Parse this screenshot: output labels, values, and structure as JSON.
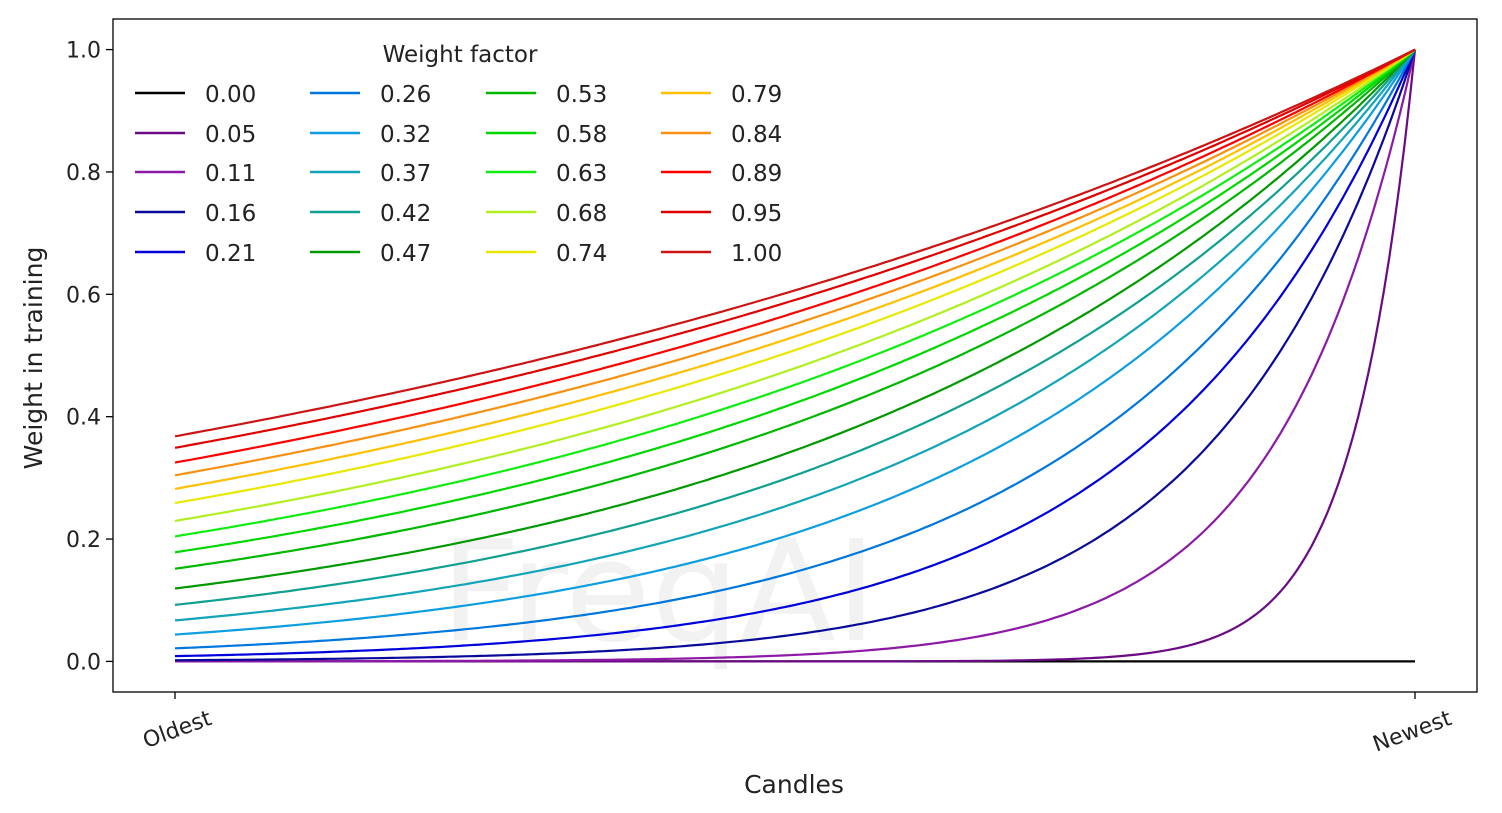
{
  "watermark": "FreqAI",
  "chart_data": {
    "type": "line",
    "title": "",
    "xlabel": "Candles",
    "ylabel": "Weight in training",
    "x": [
      0,
      1,
      2,
      3,
      4,
      5,
      6,
      7,
      8,
      9,
      10
    ],
    "xticks": [
      {
        "value": 0,
        "label": "Oldest"
      },
      {
        "value": 10,
        "label": "Newest"
      }
    ],
    "yticks": [
      "0.0",
      "0.2",
      "0.4",
      "0.6",
      "0.8",
      "1.0"
    ],
    "ylim": [
      -0.05,
      1.05
    ],
    "xlim": [
      -0.5,
      10.5
    ],
    "grid": false,
    "legend": {
      "title": "Weight factor",
      "placement": "top-left",
      "columns": 4
    },
    "series": [
      {
        "name": "0.00",
        "color": "#000000",
        "values": [
          0,
          0,
          0,
          0,
          0,
          0,
          0,
          0,
          0,
          0,
          0
        ]
      },
      {
        "name": "0.05",
        "color": "#6a0a84",
        "values": [
          0,
          0,
          0,
          0,
          0,
          0,
          0.0003,
          0.0025,
          0.0183,
          0.1353,
          1
        ]
      },
      {
        "name": "0.11",
        "color": "#8c1aa6",
        "values": [
          0.0001,
          0.0003,
          0.0007,
          0.0017,
          0.0043,
          0.0106,
          0.0264,
          0.0654,
          0.1623,
          0.4029,
          1
        ]
      },
      {
        "name": "0.16",
        "color": "#0a0a9a",
        "values": [
          0.0019,
          0.0036,
          0.0067,
          0.0126,
          0.0235,
          0.044,
          0.0821,
          0.1534,
          0.2865,
          0.5353,
          1
        ]
      },
      {
        "name": "0.21",
        "color": "#0000dd",
        "values": [
          0.0086,
          0.0138,
          0.0221,
          0.0357,
          0.0574,
          0.0924,
          0.1488,
          0.2396,
          0.3858,
          0.6211,
          1
        ]
      },
      {
        "name": "0.26",
        "color": "#0077dd",
        "values": [
          0.0214,
          0.0314,
          0.0461,
          0.0677,
          0.0995,
          0.1462,
          0.2147,
          0.3154,
          0.4634,
          0.6807,
          1
        ]
      },
      {
        "name": "0.32",
        "color": "#0c9ee0",
        "values": [
          0.0439,
          0.06,
          0.0821,
          0.1122,
          0.1533,
          0.2096,
          0.2865,
          0.3916,
          0.5352,
          0.7316,
          1
        ]
      },
      {
        "name": "0.37",
        "color": "#12a5b8",
        "values": [
          0.067,
          0.0879,
          0.1151,
          0.1508,
          0.1976,
          0.259,
          0.3393,
          0.4446,
          0.5825,
          0.7632,
          1
        ]
      },
      {
        "name": "0.42",
        "color": "#10a090",
        "values": [
          0.0924,
          0.1173,
          0.1488,
          0.1888,
          0.2396,
          0.304,
          0.3858,
          0.4895,
          0.6211,
          0.7881,
          1
        ]
      },
      {
        "name": "0.47",
        "color": "#009a00",
        "values": [
          0.1191,
          0.1473,
          0.1822,
          0.2254,
          0.2789,
          0.345,
          0.4269,
          0.5281,
          0.6534,
          0.8083,
          1
        ]
      },
      {
        "name": "0.53",
        "color": "#00b800",
        "values": [
          0.1515,
          0.1829,
          0.2209,
          0.2668,
          0.3223,
          0.3892,
          0.47,
          0.5677,
          0.6856,
          0.828,
          1
        ]
      },
      {
        "name": "0.58",
        "color": "#00d800",
        "values": [
          0.1783,
          0.2118,
          0.2517,
          0.299,
          0.3553,
          0.4222,
          0.5017,
          0.5961,
          0.7083,
          0.8416,
          1
        ]
      },
      {
        "name": "0.63",
        "color": "#10ee10",
        "values": [
          0.2044,
          0.2396,
          0.2808,
          0.3291,
          0.3857,
          0.4521,
          0.5299,
          0.6211,
          0.728,
          0.8532,
          1
        ]
      },
      {
        "name": "0.68",
        "color": "#b0f020",
        "values": [
          0.2297,
          0.2661,
          0.3083,
          0.3571,
          0.4137,
          0.4793,
          0.5552,
          0.6432,
          0.7451,
          0.8632,
          1
        ]
      },
      {
        "name": "0.74",
        "color": "#e8e800",
        "values": [
          0.2589,
          0.2963,
          0.3392,
          0.3883,
          0.4445,
          0.5088,
          0.5824,
          0.6667,
          0.7632,
          0.8736,
          1
        ]
      },
      {
        "name": "0.79",
        "color": "#ffc000",
        "values": [
          0.282,
          0.3201,
          0.3633,
          0.4123,
          0.4679,
          0.5311,
          0.6027,
          0.684,
          0.7763,
          0.8811,
          1
        ]
      },
      {
        "name": "0.84",
        "color": "#f89010",
        "values": [
          0.3042,
          0.3426,
          0.3859,
          0.4347,
          0.4896,
          0.5515,
          0.6212,
          0.6997,
          0.7882,
          0.8878,
          1
        ]
      },
      {
        "name": "0.89",
        "color": "#ff0000",
        "values": [
          0.325,
          0.3637,
          0.4069,
          0.4553,
          0.5095,
          0.5701,
          0.6379,
          0.7138,
          0.7987,
          0.8937,
          1
        ]
      },
      {
        "name": "0.95",
        "color": "#e00000",
        "values": [
          0.3491,
          0.3878,
          0.4309,
          0.4787,
          0.5318,
          0.5908,
          0.6564,
          0.7293,
          0.8102,
          0.9001,
          1
        ]
      },
      {
        "name": "1.00",
        "color": "#cc1414",
        "values": [
          0.3679,
          0.4066,
          0.4493,
          0.4966,
          0.5488,
          0.6065,
          0.6703,
          0.7408,
          0.8187,
          0.9048,
          1
        ]
      }
    ]
  }
}
